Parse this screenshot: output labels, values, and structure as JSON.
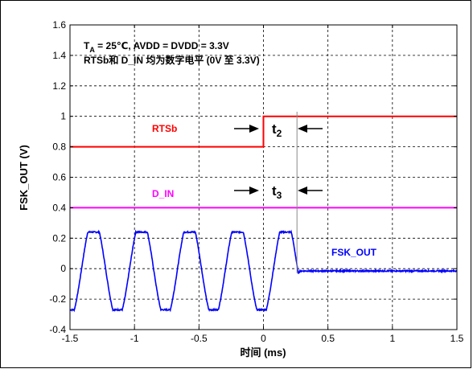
{
  "chart_data": {
    "type": "line",
    "xlabel": "时间 (ms)",
    "ylabel": "FSK_OUT (V)",
    "xlim": [
      -1.5,
      1.5
    ],
    "ylim": [
      -0.4,
      1.6
    ],
    "xticks": [
      -1.5,
      -1,
      -0.5,
      0,
      0.5,
      1,
      1.5
    ],
    "xtick_labels": [
      "-1.5",
      "-1",
      "-0.5",
      "0",
      "0.5",
      "1",
      "1.5"
    ],
    "yticks": [
      -0.4,
      -0.2,
      0,
      0.2,
      0.4,
      0.6,
      0.8,
      1,
      1.2,
      1.4,
      1.6
    ],
    "ytick_labels": [
      "-0.4",
      "-0.2",
      "0",
      "0.2",
      "0.4",
      "0.6",
      "0.8",
      "1",
      "1.2",
      "1.4",
      "1.6"
    ],
    "grid": true,
    "annotations": {
      "condition_line1_pre": "T",
      "condition_line1_sub": "A",
      "condition_line1_post": " = 25℃, AVDD = DVDD = 3.3V",
      "condition_line2": "RTSb和 D_IN 均为数字电平 (0V 至 3.3V)",
      "t2_label": "t",
      "t2_sub": "2",
      "t3_label": "t",
      "t3_sub": "3",
      "marker_x": 0.26
    },
    "series": [
      {
        "name": "RTSb",
        "color": "#ff0000",
        "x": [
          -1.5,
          0,
          0,
          1.5
        ],
        "y": [
          0.8,
          0.8,
          1.0,
          1.0
        ]
      },
      {
        "name": "D_IN",
        "color": "#ff00ff",
        "x": [
          -1.5,
          1.5
        ],
        "y": [
          0.4,
          0.4
        ]
      },
      {
        "name": "FSK_OUT",
        "color": "#0000ff",
        "wave": {
          "start": -1.5,
          "end_osc": 0.27,
          "end": 1.5,
          "phase_start": -1.41,
          "period": 0.372,
          "amplitude": 0.255,
          "plateau_high": 0.24,
          "plateau_low": -0.27,
          "settle_value": -0.015,
          "noise": 0.004
        }
      }
    ]
  }
}
